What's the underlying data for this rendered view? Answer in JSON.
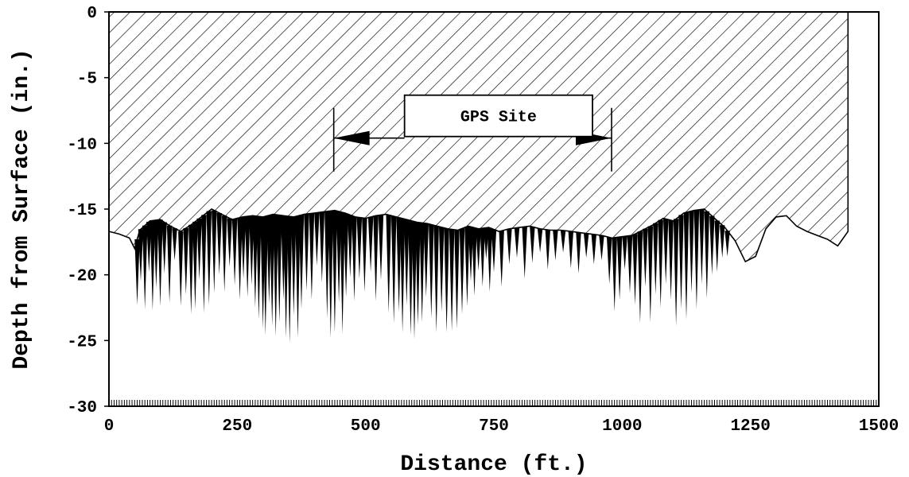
{
  "chart_data": {
    "type": "area",
    "xlabel": "Distance (ft.)",
    "ylabel": "Depth from Surface (in.)",
    "xlim": [
      0,
      1500
    ],
    "ylim": [
      -30,
      0
    ],
    "x_ticks": [
      0,
      250,
      500,
      750,
      1000,
      1250,
      1500
    ],
    "y_ticks": [
      0,
      -5,
      -10,
      -15,
      -20,
      -25,
      -30
    ],
    "grid": false,
    "surface_profile": {
      "x": [
        0,
        20,
        40,
        50,
        60,
        80,
        100,
        120,
        140,
        160,
        180,
        200,
        220,
        240,
        260,
        280,
        300,
        320,
        340,
        360,
        380,
        400,
        420,
        440,
        460,
        480,
        500,
        520,
        540,
        560,
        580,
        600,
        620,
        640,
        660,
        680,
        700,
        720,
        740,
        760,
        780,
        800,
        820,
        840,
        860,
        880,
        900,
        920,
        940,
        960,
        980,
        1000,
        1020,
        1040,
        1060,
        1080,
        1100,
        1120,
        1140,
        1160,
        1180,
        1200,
        1220,
        1240,
        1260,
        1280,
        1300,
        1320,
        1340,
        1360,
        1380,
        1400,
        1420,
        1440
      ],
      "depth": [
        -16.7,
        -16.9,
        -17.2,
        -18.0,
        -16.6,
        -15.9,
        -15.8,
        -16.3,
        -16.7,
        -16.2,
        -15.6,
        -15.0,
        -15.4,
        -15.8,
        -15.6,
        -15.5,
        -15.6,
        -15.4,
        -15.5,
        -15.6,
        -15.4,
        -15.3,
        -15.2,
        -15.1,
        -15.3,
        -15.6,
        -15.7,
        -15.5,
        -15.4,
        -15.6,
        -15.8,
        -16.0,
        -16.1,
        -16.3,
        -16.5,
        -16.6,
        -16.3,
        -16.5,
        -16.4,
        -16.7,
        -16.5,
        -16.4,
        -16.3,
        -16.5,
        -16.6,
        -16.6,
        -16.7,
        -16.8,
        -16.9,
        -17.0,
        -17.2,
        -17.1,
        -17.0,
        -16.6,
        -16.2,
        -15.7,
        -15.9,
        -15.3,
        -15.1,
        -15.0,
        -15.7,
        -16.4,
        -17.4,
        -19.0,
        -18.6,
        -16.5,
        -15.6,
        -15.5,
        -16.3,
        -16.7,
        -17.0,
        -17.3,
        -17.8,
        -16.7
      ]
    },
    "rut_spikes": {
      "x": [
        55,
        62,
        70,
        78,
        85,
        92,
        100,
        108,
        118,
        128,
        140,
        150,
        160,
        168,
        176,
        185,
        195,
        205,
        215,
        225,
        235,
        245,
        255,
        262,
        270,
        278,
        285,
        292,
        300,
        305,
        312,
        318,
        325,
        332,
        340,
        345,
        352,
        360,
        368,
        375,
        385,
        395,
        405,
        415,
        425,
        432,
        440,
        448,
        455,
        462,
        470,
        478,
        488,
        498,
        510,
        520,
        530,
        545,
        555,
        565,
        572,
        580,
        588,
        595,
        602,
        610,
        618,
        628,
        638,
        648,
        658,
        668,
        678,
        688,
        698,
        705,
        712,
        720,
        728,
        735,
        742,
        750,
        765,
        780,
        795,
        810,
        825,
        840,
        855,
        870,
        885,
        900,
        915,
        930,
        945,
        960,
        975,
        985,
        995,
        1005,
        1015,
        1025,
        1035,
        1045,
        1055,
        1065,
        1075,
        1085,
        1095,
        1105,
        1115,
        1125,
        1135,
        1145,
        1155,
        1165,
        1175,
        1185,
        1195,
        1205
      ],
      "depth": [
        -22.3,
        -20.5,
        -22.6,
        -19.8,
        -22.7,
        -21.0,
        -22.4,
        -19.9,
        -22.1,
        -18.9,
        -22.4,
        -21.5,
        -23.0,
        -22.6,
        -20.4,
        -22.9,
        -22.3,
        -21.4,
        -20.0,
        -21.3,
        -19.4,
        -20.8,
        -21.9,
        -20.3,
        -21.7,
        -20.8,
        -22.5,
        -23.4,
        -24.1,
        -24.6,
        -22.2,
        -23.9,
        -24.7,
        -23.6,
        -21.9,
        -24.8,
        -25.2,
        -23.1,
        -24.8,
        -22.6,
        -21.2,
        -21.9,
        -19.3,
        -20.6,
        -23.3,
        -24.8,
        -24.4,
        -22.1,
        -24.5,
        -21.7,
        -20.2,
        -22.0,
        -20.3,
        -21.3,
        -19.8,
        -22.0,
        -20.4,
        -22.9,
        -23.7,
        -22.8,
        -24.4,
        -22.3,
        -24.6,
        -24.9,
        -23.8,
        -23.6,
        -21.7,
        -23.3,
        -24.4,
        -22.8,
        -24.4,
        -24.3,
        -24.1,
        -23.0,
        -22.4,
        -20.5,
        -21.6,
        -19.7,
        -20.9,
        -18.8,
        -21.3,
        -19.8,
        -20.9,
        -19.2,
        -18.7,
        -20.3,
        -19.1,
        -18.3,
        -19.6,
        -18.9,
        -18.3,
        -19.5,
        -19.9,
        -18.7,
        -19.2,
        -18.9,
        -20.7,
        -22.8,
        -21.9,
        -19.6,
        -21.4,
        -22.3,
        -23.7,
        -20.9,
        -23.6,
        -21.5,
        -22.5,
        -20.7,
        -21.9,
        -23.9,
        -22.6,
        -23.4,
        -21.4,
        -22.6,
        -20.7,
        -21.8,
        -20.0,
        -19.8,
        -18.7,
        -18.6
      ]
    },
    "annotation": {
      "label": "GPS Site",
      "x_start": 500,
      "x_end": 1015,
      "depth_at_arrows": -9.6
    }
  }
}
